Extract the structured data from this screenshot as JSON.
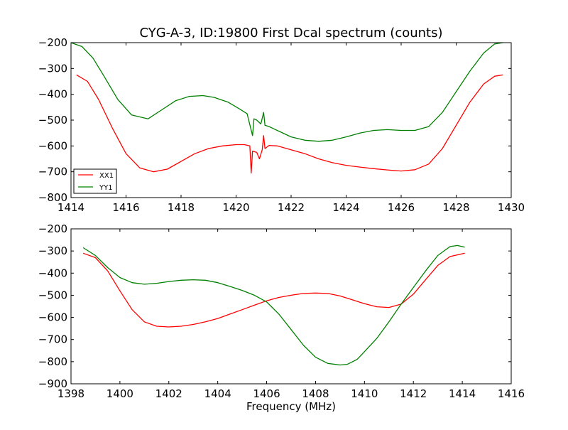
{
  "chart_data": [
    {
      "type": "line",
      "title": "CYG-A-3, ID:19800 First Dcal spectrum (counts)",
      "xlabel": "",
      "ylabel": "",
      "xlim": [
        1414,
        1430
      ],
      "ylim": [
        -800,
        -200
      ],
      "xticks": [
        "1414",
        "1416",
        "1418",
        "1420",
        "1422",
        "1424",
        "1426",
        "1428",
        "1430"
      ],
      "yticks": [
        "−800",
        "−700",
        "−600",
        "−500",
        "−400",
        "−300",
        "−200"
      ],
      "xtick_values": [
        1414,
        1416,
        1418,
        1420,
        1422,
        1424,
        1426,
        1428,
        1430
      ],
      "ytick_values": [
        -800,
        -700,
        -600,
        -500,
        -400,
        -300,
        -200
      ],
      "legend": {
        "position": "lower-left",
        "entries": [
          "XX1",
          "YY1"
        ]
      },
      "series": [
        {
          "name": "XX1",
          "color": "#ff0000",
          "x": [
            1414.2,
            1414.6,
            1415.0,
            1415.5,
            1416.0,
            1416.5,
            1417.0,
            1417.5,
            1418.0,
            1418.5,
            1419.0,
            1419.5,
            1420.0,
            1420.3,
            1420.5,
            1420.55,
            1420.6,
            1420.75,
            1420.85,
            1420.95,
            1421.0,
            1421.05,
            1421.2,
            1421.5,
            1422.0,
            1422.5,
            1423.0,
            1423.5,
            1424.0,
            1424.5,
            1425.0,
            1425.5,
            1426.0,
            1426.5,
            1427.0,
            1427.5,
            1428.0,
            1428.5,
            1429.0,
            1429.4,
            1429.7
          ],
          "y": [
            -325,
            -350,
            -420,
            -530,
            -630,
            -685,
            -700,
            -690,
            -660,
            -630,
            -610,
            -600,
            -595,
            -595,
            -600,
            -705,
            -620,
            -625,
            -650,
            -615,
            -560,
            -610,
            -598,
            -600,
            -615,
            -630,
            -650,
            -665,
            -675,
            -682,
            -688,
            -693,
            -697,
            -692,
            -670,
            -610,
            -520,
            -430,
            -360,
            -330,
            -325
          ]
        },
        {
          "name": "YY1",
          "color": "#008000",
          "x": [
            1414.0,
            1414.4,
            1414.8,
            1415.2,
            1415.7,
            1416.2,
            1416.8,
            1417.3,
            1417.8,
            1418.3,
            1418.8,
            1419.2,
            1419.7,
            1420.1,
            1420.4,
            1420.6,
            1420.65,
            1420.75,
            1420.9,
            1421.0,
            1421.05,
            1421.2,
            1421.6,
            1422.0,
            1422.5,
            1423.0,
            1423.5,
            1424.0,
            1424.5,
            1425.0,
            1425.5,
            1426.0,
            1426.5,
            1427.0,
            1427.5,
            1428.0,
            1428.5,
            1429.0,
            1429.4,
            1429.7
          ],
          "y": [
            -200,
            -215,
            -260,
            -330,
            -420,
            -480,
            -495,
            -460,
            -425,
            -408,
            -405,
            -412,
            -430,
            -455,
            -475,
            -560,
            -495,
            -500,
            -515,
            -470,
            -520,
            -525,
            -545,
            -565,
            -578,
            -582,
            -578,
            -565,
            -550,
            -540,
            -537,
            -540,
            -540,
            -525,
            -470,
            -390,
            -310,
            -240,
            -205,
            -200
          ]
        }
      ]
    },
    {
      "type": "line",
      "title": "",
      "xlabel": "Frequency (MHz)",
      "ylabel": "",
      "xlim": [
        1398,
        1416
      ],
      "ylim": [
        -900,
        -200
      ],
      "xticks": [
        "1398",
        "1400",
        "1402",
        "1404",
        "1406",
        "1408",
        "1410",
        "1412",
        "1414",
        "1416"
      ],
      "yticks": [
        "−900",
        "−800",
        "−700",
        "−600",
        "−500",
        "−400",
        "−300",
        "−200"
      ],
      "xtick_values": [
        1398,
        1400,
        1402,
        1404,
        1406,
        1408,
        1410,
        1412,
        1414,
        1416
      ],
      "ytick_values": [
        -900,
        -800,
        -700,
        -600,
        -500,
        -400,
        -300,
        -200
      ],
      "series": [
        {
          "name": "",
          "color": "#ff0000",
          "x": [
            1398.5,
            1399.0,
            1399.5,
            1400.0,
            1400.5,
            1401.0,
            1401.5,
            1402.0,
            1402.5,
            1403.0,
            1403.5,
            1404.0,
            1404.5,
            1405.0,
            1405.5,
            1406.0,
            1406.5,
            1407.0,
            1407.5,
            1408.0,
            1408.5,
            1409.0,
            1409.5,
            1410.0,
            1410.5,
            1411.0,
            1411.5,
            1412.0,
            1412.5,
            1413.0,
            1413.5,
            1414.1
          ],
          "y": [
            -310,
            -330,
            -390,
            -480,
            -565,
            -620,
            -640,
            -643,
            -640,
            -632,
            -620,
            -605,
            -585,
            -565,
            -545,
            -525,
            -510,
            -500,
            -492,
            -490,
            -492,
            -503,
            -520,
            -538,
            -552,
            -555,
            -540,
            -495,
            -430,
            -365,
            -325,
            -310
          ]
        },
        {
          "name": "",
          "color": "#008000",
          "x": [
            1398.5,
            1399.0,
            1399.5,
            1400.0,
            1400.5,
            1401.0,
            1401.5,
            1402.0,
            1402.5,
            1403.0,
            1403.5,
            1404.0,
            1404.5,
            1405.0,
            1405.5,
            1406.0,
            1406.5,
            1407.0,
            1407.5,
            1408.0,
            1408.5,
            1409.0,
            1409.3,
            1409.7,
            1410.0,
            1410.5,
            1411.0,
            1411.5,
            1412.0,
            1412.5,
            1413.0,
            1413.5,
            1413.8,
            1414.1
          ],
          "y": [
            -285,
            -320,
            -375,
            -420,
            -443,
            -450,
            -446,
            -438,
            -432,
            -430,
            -432,
            -443,
            -460,
            -478,
            -500,
            -530,
            -585,
            -655,
            -725,
            -780,
            -808,
            -815,
            -812,
            -790,
            -755,
            -695,
            -620,
            -540,
            -465,
            -390,
            -320,
            -280,
            -275,
            -283
          ]
        }
      ]
    }
  ]
}
